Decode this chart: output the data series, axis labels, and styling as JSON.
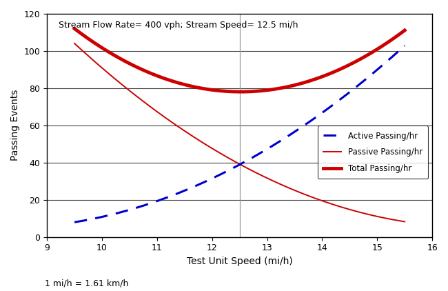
{
  "title_annotation": "Stream Flow Rate= 400 vph; Stream Speed= 12.5 mi/h",
  "xlabel": "Test Unit Speed (mi/h)",
  "ylabel": "Passing Events",
  "footnote": "1 mi/h = 1.61 km/h",
  "xlim": [
    9,
    16
  ],
  "ylim": [
    0,
    120
  ],
  "xticks": [
    9,
    10,
    11,
    12,
    13,
    14,
    15,
    16
  ],
  "yticks": [
    0,
    20,
    40,
    60,
    80,
    100,
    120
  ],
  "x_start": 9.5,
  "x_end": 15.5,
  "vline_x": 12.5,
  "active_color": "#0000CC",
  "passive_color": "#CC0000",
  "total_color": "#CC0000",
  "active_label": "Active Passing/hr",
  "passive_label": "Passive Passing/hr",
  "total_label": "Total Passing/hr",
  "active_linewidth": 2.2,
  "passive_linewidth": 1.4,
  "total_linewidth": 3.5,
  "background_color": "#ffffff",
  "grid_color": "#888888",
  "vline_color": "#999999",
  "active_quad": [
    1.833,
    -30.0,
    127.5
  ],
  "passive_quad": [
    1.889,
    -63.2,
    534.0
  ]
}
